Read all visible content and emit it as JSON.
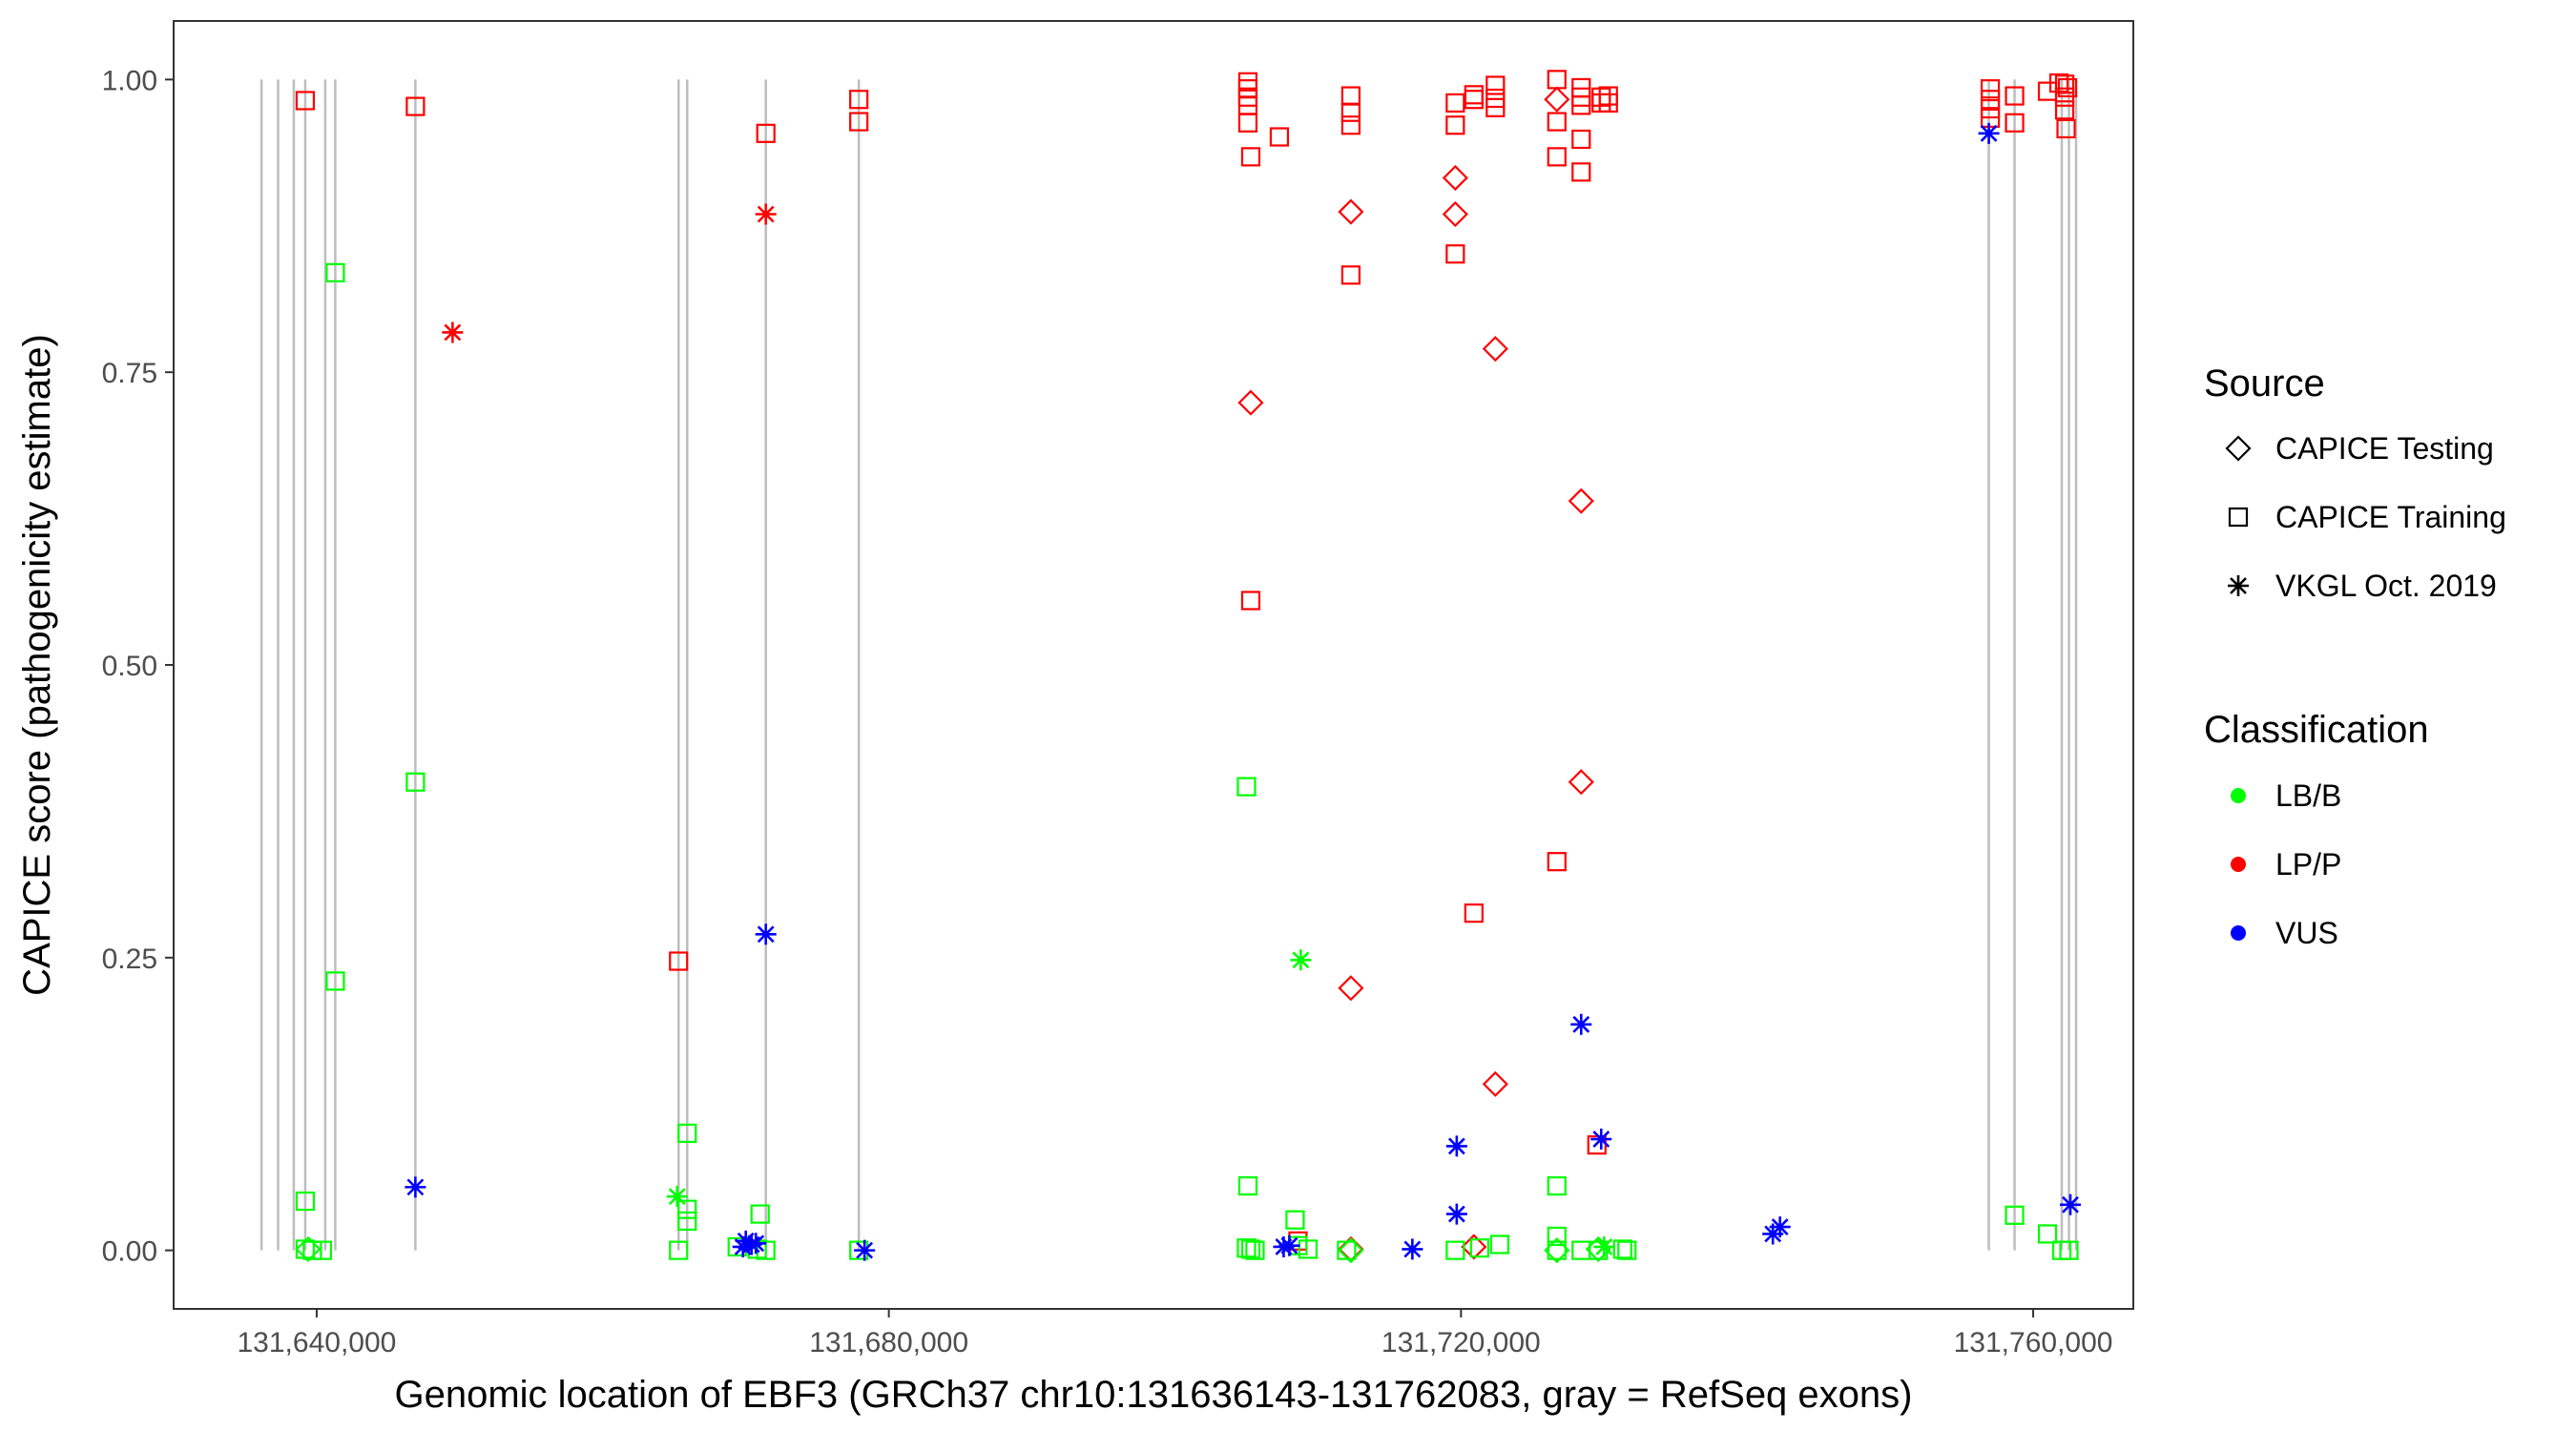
{
  "chart_data": {
    "type": "scatter",
    "title": "",
    "xlabel": "Genomic location of EBF3 (GRCh37 chr10:131636143-131762083, gray = RefSeq exons)",
    "ylabel": "CAPICE score (pathogenicity estimate)",
    "xlim": [
      131630000,
      131767000
    ],
    "ylim": [
      -0.05,
      1.05
    ],
    "x_ticks": [
      131640000,
      131680000,
      131720000,
      131760000
    ],
    "x_tick_labels": [
      "131,640,000",
      "131,680,000",
      "131,720,000",
      "131,760,000"
    ],
    "y_ticks": [
      0,
      0.25,
      0.5,
      0.75,
      1
    ],
    "y_tick_labels": [
      "0.00",
      "0.25",
      "0.50",
      "0.75",
      "1.00"
    ],
    "grid": false,
    "exon_color": "#bdbdbd",
    "exon_lines": [
      {
        "x": 131636143,
        "ymax": 1.0
      },
      {
        "x": 131637300,
        "ymax": 1.0
      },
      {
        "x": 131638400,
        "ymax": 1.0
      },
      {
        "x": 131639200,
        "ymax": 1.0
      },
      {
        "x": 131640600,
        "ymax": 1.0
      },
      {
        "x": 131641300,
        "ymax": 1.0
      },
      {
        "x": 131646900,
        "ymax": 1.0
      },
      {
        "x": 131665300,
        "ymax": 1.0
      },
      {
        "x": 131665900,
        "ymax": 1.0
      },
      {
        "x": 131671400,
        "ymax": 1.0
      },
      {
        "x": 131677900,
        "ymax": 1.0
      },
      {
        "x": 131756900,
        "ymax": 1.0
      },
      {
        "x": 131758700,
        "ymax": 1.0
      },
      {
        "x": 131762000,
        "ymax": 1.0
      },
      {
        "x": 131762500,
        "ymax": 1.0
      },
      {
        "x": 131763000,
        "ymax": 1.0
      }
    ],
    "legend": {
      "placement": "right",
      "source_title": "Source",
      "source_items": [
        {
          "shape": "diamond",
          "label": "CAPICE Testing"
        },
        {
          "shape": "square",
          "label": "CAPICE Training"
        },
        {
          "shape": "star",
          "label": "VKGL Oct. 2019"
        }
      ],
      "class_title": "Classification",
      "class_items": [
        {
          "key": "LB/B",
          "label": "LB/B",
          "color": "#00ff00"
        },
        {
          "key": "LP/P",
          "label": "LP/P",
          "color": "#ff0000"
        },
        {
          "key": "VUS",
          "label": "VUS",
          "color": "#0000ff"
        }
      ]
    },
    "series": [
      {
        "classification": "LP/P",
        "source": "CAPICE Training",
        "shape": "square",
        "color": "#ff0000",
        "points": [
          [
            131639200,
            0.982
          ],
          [
            131646900,
            0.977
          ],
          [
            131671400,
            0.954
          ],
          [
            131677900,
            0.983
          ],
          [
            131677900,
            0.964
          ],
          [
            131705100,
            0.998
          ],
          [
            131705100,
            0.992
          ],
          [
            131705100,
            0.985
          ],
          [
            131705100,
            0.978
          ],
          [
            131705100,
            0.963
          ],
          [
            131705300,
            0.934
          ],
          [
            131705300,
            0.555
          ],
          [
            131707300,
            0.951
          ],
          [
            131712300,
            0.986
          ],
          [
            131712300,
            0.972
          ],
          [
            131712300,
            0.961
          ],
          [
            131712300,
            0.833
          ],
          [
            131719600,
            0.98
          ],
          [
            131719600,
            0.961
          ],
          [
            131719600,
            0.851
          ],
          [
            131720900,
            0.987
          ],
          [
            131720900,
            0.983
          ],
          [
            131720900,
            0.288
          ],
          [
            131722400,
            0.995
          ],
          [
            131722400,
            0.984
          ],
          [
            131722400,
            0.976
          ],
          [
            131726700,
            1.0
          ],
          [
            131726700,
            0.964
          ],
          [
            131726700,
            0.934
          ],
          [
            131726700,
            0.332
          ],
          [
            131728400,
            0.993
          ],
          [
            131728400,
            0.985
          ],
          [
            131728400,
            0.978
          ],
          [
            131728400,
            0.949
          ],
          [
            131728400,
            0.921
          ],
          [
            131729800,
            0.985
          ],
          [
            131729800,
            0.98
          ],
          [
            131730300,
            0.986
          ],
          [
            131730300,
            0.98
          ],
          [
            131729500,
            0.09
          ],
          [
            131665300,
            0.247
          ],
          [
            131757000,
            0.992
          ],
          [
            131757000,
            0.983
          ],
          [
            131757000,
            0.975
          ],
          [
            131757000,
            0.967
          ],
          [
            131758700,
            0.986
          ],
          [
            131758700,
            0.963
          ],
          [
            131761000,
            0.99
          ],
          [
            131761800,
            0.997
          ],
          [
            131762200,
            0.996
          ],
          [
            131762400,
            0.993
          ],
          [
            131762200,
            0.985
          ],
          [
            131762200,
            0.974
          ],
          [
            131762300,
            0.958
          ],
          [
            131708600,
            0.008
          ]
        ]
      },
      {
        "classification": "LP/P",
        "source": "CAPICE Testing",
        "shape": "diamond",
        "color": "#ff0000",
        "points": [
          [
            131705300,
            0.724
          ],
          [
            131712300,
            0.887
          ],
          [
            131712300,
            0.224
          ],
          [
            131712300,
            0.001
          ],
          [
            131719600,
            0.916
          ],
          [
            131719600,
            0.885
          ],
          [
            131722400,
            0.77
          ],
          [
            131722400,
            0.142
          ],
          [
            131726700,
            0.983
          ],
          [
            131728400,
            0.64
          ],
          [
            131728400,
            0.4
          ],
          [
            131720900,
            0.003
          ]
        ]
      },
      {
        "classification": "LP/P",
        "source": "VKGL Oct. 2019",
        "shape": "star",
        "color": "#ff0000",
        "points": [
          [
            131649500,
            0.784
          ],
          [
            131671400,
            0.885
          ]
        ]
      },
      {
        "classification": "LB/B",
        "source": "CAPICE Training",
        "shape": "square",
        "color": "#00ff00",
        "points": [
          [
            131641300,
            0.835
          ],
          [
            131646900,
            0.4
          ],
          [
            131641300,
            0.23
          ],
          [
            131639200,
            0.042
          ],
          [
            131639200,
            0.001
          ],
          [
            131639700,
            0.0
          ],
          [
            131640400,
            0.0
          ],
          [
            131665900,
            0.1
          ],
          [
            131665900,
            0.035
          ],
          [
            131665900,
            0.025
          ],
          [
            131665300,
            0.0
          ],
          [
            131669400,
            0.003
          ],
          [
            131670800,
            0.001
          ],
          [
            131671400,
            0.0
          ],
          [
            131671000,
            0.031
          ],
          [
            131677900,
            0.0
          ],
          [
            131705000,
            0.396
          ],
          [
            131705100,
            0.055
          ],
          [
            131705000,
            0.002
          ],
          [
            131705300,
            0.001
          ],
          [
            131705600,
            0.0
          ],
          [
            131708400,
            0.026
          ],
          [
            131708600,
            0.004
          ],
          [
            131709300,
            0.001
          ],
          [
            131712000,
            0.0
          ],
          [
            131719600,
            0.0
          ],
          [
            131721300,
            0.002
          ],
          [
            131722700,
            0.005
          ],
          [
            131726700,
            0.055
          ],
          [
            131726700,
            0.012
          ],
          [
            131726700,
            0.0
          ],
          [
            131728400,
            0.0
          ],
          [
            131729600,
            0.0
          ],
          [
            131731300,
            0.001
          ],
          [
            131731600,
            0.0
          ],
          [
            131758700,
            0.03
          ],
          [
            131761000,
            0.014
          ],
          [
            131762000,
            0.0
          ],
          [
            131762500,
            0.0
          ]
        ]
      },
      {
        "classification": "LB/B",
        "source": "CAPICE Testing",
        "shape": "diamond",
        "color": "#00ff00",
        "points": [
          [
            131639400,
            0.001
          ],
          [
            131726700,
            0.0
          ],
          [
            131729600,
            0.001
          ],
          [
            131712300,
            0.0
          ]
        ]
      },
      {
        "classification": "LB/B",
        "source": "VKGL Oct. 2019",
        "shape": "star",
        "color": "#00ff00",
        "points": [
          [
            131708800,
            0.248
          ],
          [
            131665200,
            0.046
          ],
          [
            131730000,
            0.003
          ]
        ]
      },
      {
        "classification": "VUS",
        "source": "VKGL Oct. 2019",
        "shape": "star",
        "color": "#0000ff",
        "points": [
          [
            131646900,
            0.054
          ],
          [
            131671400,
            0.27
          ],
          [
            131670000,
            0.008
          ],
          [
            131669800,
            0.003
          ],
          [
            131670400,
            0.005
          ],
          [
            131670700,
            0.006
          ],
          [
            131678300,
            0.0
          ],
          [
            131707600,
            0.003
          ],
          [
            131708000,
            0.004
          ],
          [
            131716600,
            0.001
          ],
          [
            131719700,
            0.089
          ],
          [
            131719700,
            0.031
          ],
          [
            131728400,
            0.193
          ],
          [
            131729800,
            0.095
          ],
          [
            131741800,
            0.014
          ],
          [
            131742300,
            0.02
          ],
          [
            131756900,
            0.954
          ],
          [
            131762600,
            0.039
          ]
        ]
      }
    ]
  }
}
